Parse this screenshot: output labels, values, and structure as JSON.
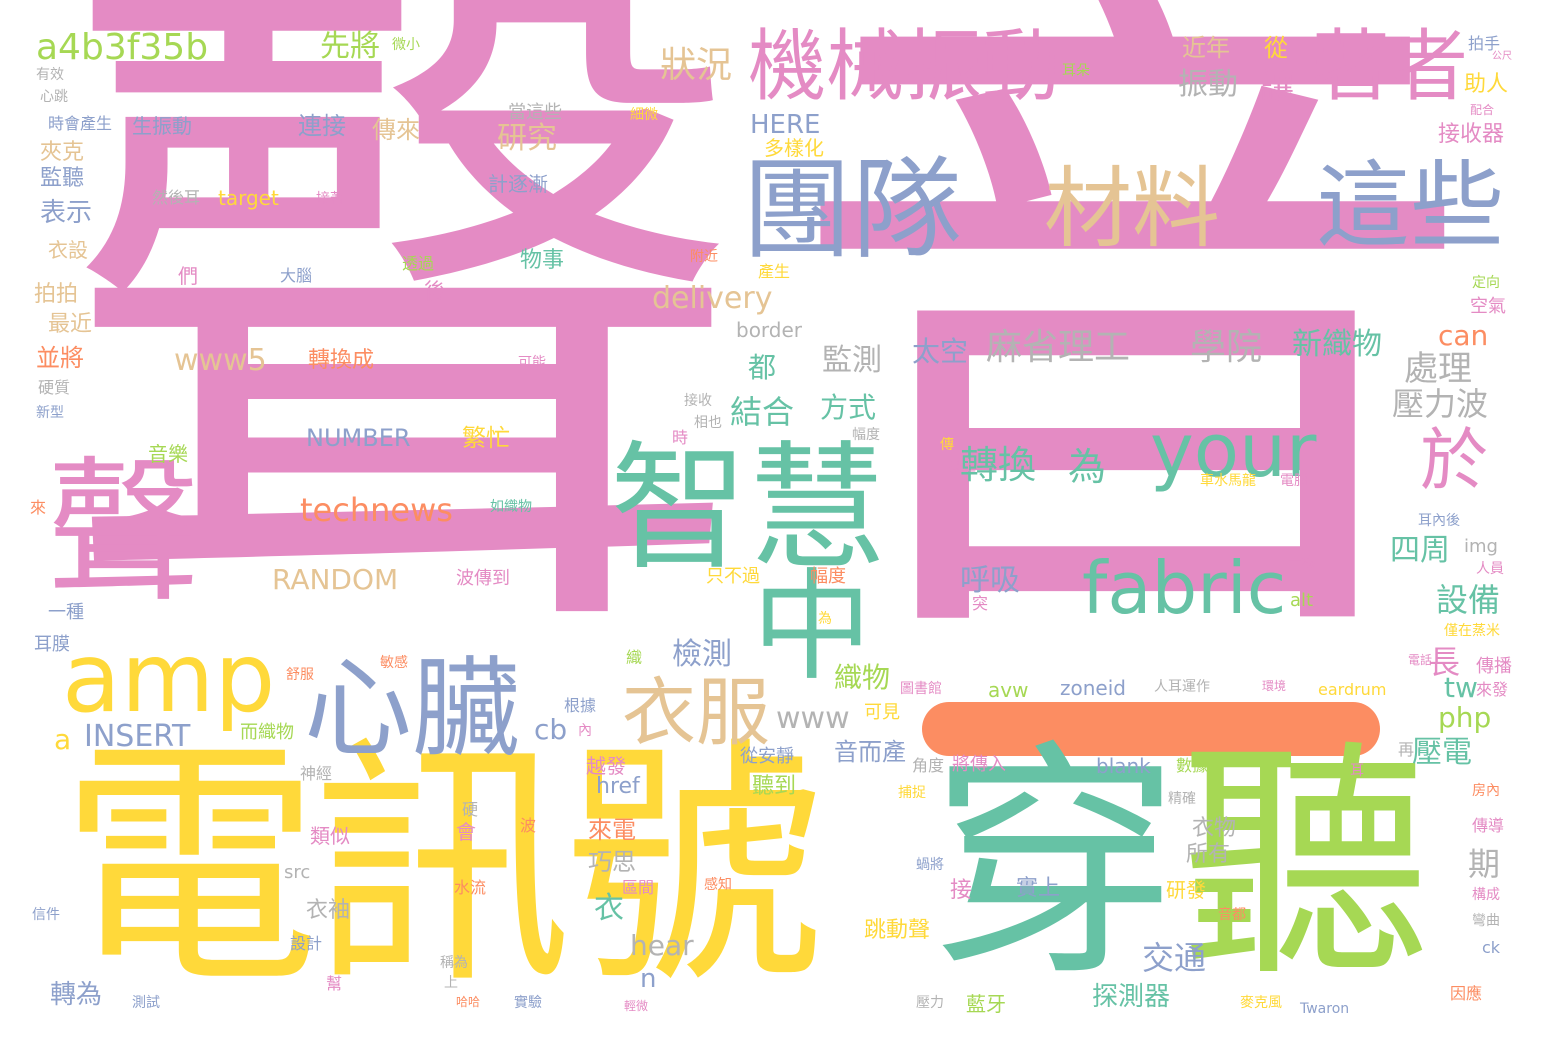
{
  "colors": {
    "pink": "#e48bc4",
    "yellow": "#ffd93a",
    "green": "#66c2a5",
    "lime": "#a6d854",
    "blue": "#8da0cb",
    "tan": "#e5c494",
    "orange": "#fc8d62",
    "gray": "#b3b3b3"
  },
  "words": [
    {
      "text": "聲",
      "color": "pink"
    },
    {
      "text": "音",
      "color": "pink"
    },
    {
      "text": "電訊號",
      "color": "yellow"
    },
    {
      "text": "穿",
      "color": "green"
    },
    {
      "text": "聽",
      "color": "lime"
    },
    {
      "text": "聲",
      "color": "pink"
    },
    {
      "text": "智慧",
      "color": "green"
    },
    {
      "text": "團隊",
      "color": "blue"
    },
    {
      "text": "機械振動",
      "color": "pink"
    },
    {
      "text": "著者",
      "color": "pink"
    },
    {
      "text": "材料",
      "color": "tan"
    },
    {
      "text": "這些",
      "color": "blue"
    },
    {
      "text": "中",
      "color": "green"
    },
    {
      "text": "amp",
      "color": "yellow"
    },
    {
      "text": "心臟",
      "color": "blue"
    },
    {
      "text": "衣服",
      "color": "tan"
    },
    {
      "text": "your",
      "color": "green"
    },
    {
      "text": "fabric",
      "color": "green"
    },
    {
      "text": "於",
      "color": "pink"
    },
    {
      "text": "a4b3f35b",
      "color": "lime"
    },
    {
      "text": "先將",
      "color": "lime"
    },
    {
      "text": "微小",
      "color": "lime"
    },
    {
      "text": "狀況",
      "color": "tan"
    },
    {
      "text": "研究",
      "color": "tan"
    },
    {
      "text": "計逐漸",
      "color": "blue"
    },
    {
      "text": "HERE",
      "color": "blue"
    },
    {
      "text": "多樣化",
      "color": "yellow"
    },
    {
      "text": "近年",
      "color": "tan"
    },
    {
      "text": "振動",
      "color": "gray"
    },
    {
      "text": "讓",
      "color": "pink"
    },
    {
      "text": "從",
      "color": "yellow"
    },
    {
      "text": "耳朵",
      "color": "lime"
    },
    {
      "text": "拍手",
      "color": "blue"
    },
    {
      "text": "公尺",
      "color": "pink"
    },
    {
      "text": "助人",
      "color": "yellow"
    },
    {
      "text": "配合",
      "color": "pink"
    },
    {
      "text": "接收器",
      "color": "pink"
    },
    {
      "text": "有效",
      "color": "gray"
    },
    {
      "text": "心跳",
      "color": "gray"
    },
    {
      "text": "時會產生",
      "color": "blue"
    },
    {
      "text": "生振動",
      "color": "blue"
    },
    {
      "text": "連接",
      "color": "blue"
    },
    {
      "text": "傳來",
      "color": "tan"
    },
    {
      "text": "當這些",
      "color": "gray"
    },
    {
      "text": "細微",
      "color": "yellow"
    },
    {
      "text": "夾克",
      "color": "tan"
    },
    {
      "text": "監聽",
      "color": "blue"
    },
    {
      "text": "表示",
      "color": "blue"
    },
    {
      "text": "然後耳",
      "color": "gray"
    },
    {
      "text": "target",
      "color": "yellow"
    },
    {
      "text": "接著",
      "color": "pink"
    },
    {
      "text": "衣設",
      "color": "tan"
    },
    {
      "text": "們",
      "color": "pink"
    },
    {
      "text": "大腦",
      "color": "blue"
    },
    {
      "text": "透過",
      "color": "lime"
    },
    {
      "text": "物事",
      "color": "green"
    },
    {
      "text": "附近",
      "color": "orange"
    },
    {
      "text": "產生",
      "color": "yellow"
    },
    {
      "text": "定向",
      "color": "lime"
    },
    {
      "text": "空氣",
      "color": "pink"
    },
    {
      "text": "拍拍",
      "color": "tan"
    },
    {
      "text": "最近",
      "color": "tan"
    },
    {
      "text": "並將",
      "color": "orange"
    },
    {
      "text": "後",
      "color": "pink"
    },
    {
      "text": "delivery",
      "color": "tan"
    },
    {
      "text": "border",
      "color": "gray"
    },
    {
      "text": "www5",
      "color": "tan"
    },
    {
      "text": "轉換成",
      "color": "orange"
    },
    {
      "text": "都",
      "color": "green"
    },
    {
      "text": "監測",
      "color": "gray"
    },
    {
      "text": "太空",
      "color": "blue"
    },
    {
      "text": "麻省理工",
      "color": "gray"
    },
    {
      "text": "學院",
      "color": "gray"
    },
    {
      "text": "新織物",
      "color": "green"
    },
    {
      "text": "can",
      "color": "orange"
    },
    {
      "text": "處理",
      "color": "gray"
    },
    {
      "text": "壓力波",
      "color": "gray"
    },
    {
      "text": "硬質",
      "color": "gray"
    },
    {
      "text": "新型",
      "color": "blue"
    },
    {
      "text": "可能",
      "color": "pink"
    },
    {
      "text": "結合",
      "color": "green"
    },
    {
      "text": "方式",
      "color": "green"
    },
    {
      "text": "轉換",
      "color": "green"
    },
    {
      "text": "為",
      "color": "green"
    },
    {
      "text": "接收",
      "color": "gray"
    },
    {
      "text": "相也",
      "color": "gray"
    },
    {
      "text": "幅度",
      "color": "gray"
    },
    {
      "text": "NUMBER",
      "color": "blue"
    },
    {
      "text": "繁忙",
      "color": "yellow"
    },
    {
      "text": "音樂",
      "color": "lime"
    },
    {
      "text": "時",
      "color": "pink"
    },
    {
      "text": "傳",
      "color": "yellow"
    },
    {
      "text": "身上",
      "color": "pink"
    },
    {
      "text": "車水馬龍",
      "color": "yellow"
    },
    {
      "text": "電腦",
      "color": "pink"
    },
    {
      "text": "technews",
      "color": "orange"
    },
    {
      "text": "如織物",
      "color": "green"
    },
    {
      "text": "呼吸",
      "color": "blue"
    },
    {
      "text": "四周",
      "color": "green"
    },
    {
      "text": "耳內後",
      "color": "blue"
    },
    {
      "text": "img",
      "color": "gray"
    },
    {
      "text": "人員",
      "color": "pink"
    },
    {
      "text": "來",
      "color": "orange"
    },
    {
      "text": "RANDOM",
      "color": "tan"
    },
    {
      "text": "波傳到",
      "color": "pink"
    },
    {
      "text": "只不過",
      "color": "yellow"
    },
    {
      "text": "幅度",
      "color": "orange"
    },
    {
      "text": "一樣",
      "color": "pink"
    },
    {
      "text": "設備",
      "color": "green"
    },
    {
      "text": "alt",
      "color": "lime"
    },
    {
      "text": "一種",
      "color": "blue"
    },
    {
      "text": "突",
      "color": "pink"
    },
    {
      "text": "為",
      "color": "yellow"
    },
    {
      "text": "僅在蒸米",
      "color": "yellow"
    },
    {
      "text": "耳膜",
      "color": "blue"
    },
    {
      "text": "舒服",
      "color": "orange"
    },
    {
      "text": "敏感",
      "color": "orange"
    },
    {
      "text": "織",
      "color": "lime"
    },
    {
      "text": "檢測",
      "color": "blue"
    },
    {
      "text": "長",
      "color": "pink"
    },
    {
      "text": "電話",
      "color": "pink"
    },
    {
      "text": "傳播",
      "color": "pink"
    },
    {
      "text": "tw",
      "color": "green"
    },
    {
      "text": "織物",
      "color": "lime"
    },
    {
      "text": "圖書館",
      "color": "pink"
    },
    {
      "text": "avw",
      "color": "lime"
    },
    {
      "text": "zoneid",
      "color": "blue"
    },
    {
      "text": "人耳運作",
      "color": "gray"
    },
    {
      "text": "環境",
      "color": "pink"
    },
    {
      "text": "eardrum",
      "color": "yellow"
    },
    {
      "text": "來發",
      "color": "pink"
    },
    {
      "text": "根據",
      "color": "blue"
    },
    {
      "text": "php",
      "color": "lime"
    },
    {
      "text": "a",
      "color": "yellow"
    },
    {
      "text": "INSERT",
      "color": "blue"
    },
    {
      "text": "而織物",
      "color": "lime"
    },
    {
      "text": "cb",
      "color": "blue"
    },
    {
      "text": "內",
      "color": "pink"
    },
    {
      "text": "www",
      "color": "gray"
    },
    {
      "text": "可見",
      "color": "yellow"
    },
    {
      "text": "再",
      "color": "gray"
    },
    {
      "text": "音而產",
      "color": "blue"
    },
    {
      "text": "壓電",
      "color": "green"
    },
    {
      "text": "從安靜",
      "color": "blue"
    },
    {
      "text": "角度",
      "color": "gray"
    },
    {
      "text": "將傳入",
      "color": "pink"
    },
    {
      "text": "blank",
      "color": "blue"
    },
    {
      "text": "數據",
      "color": "lime"
    },
    {
      "text": "耳",
      "color": "pink"
    },
    {
      "text": "神經",
      "color": "gray"
    },
    {
      "text": "越發",
      "color": "pink"
    },
    {
      "text": "聽到",
      "color": "lime"
    },
    {
      "text": "捕捉",
      "color": "yellow"
    },
    {
      "text": "href",
      "color": "blue"
    },
    {
      "text": "精確",
      "color": "gray"
    },
    {
      "text": "房內",
      "color": "orange"
    },
    {
      "text": "硬",
      "color": "gray"
    },
    {
      "text": "會",
      "color": "pink"
    },
    {
      "text": "波",
      "color": "orange"
    },
    {
      "text": "來電",
      "color": "orange"
    },
    {
      "text": "衣物",
      "color": "gray"
    },
    {
      "text": "傳導",
      "color": "pink"
    },
    {
      "text": "類似",
      "color": "pink"
    },
    {
      "text": "巧思",
      "color": "gray"
    },
    {
      "text": "所有",
      "color": "gray"
    },
    {
      "text": "期",
      "color": "gray"
    },
    {
      "text": "src",
      "color": "gray"
    },
    {
      "text": "蝸將",
      "color": "blue"
    },
    {
      "text": "感知",
      "color": "orange"
    },
    {
      "text": "實上",
      "color": "blue"
    },
    {
      "text": "研發",
      "color": "yellow"
    },
    {
      "text": "信件",
      "color": "blue"
    },
    {
      "text": "衣袖",
      "color": "gray"
    },
    {
      "text": "區間",
      "color": "pink"
    },
    {
      "text": "水流",
      "color": "orange"
    },
    {
      "text": "接",
      "color": "pink"
    },
    {
      "text": "衣",
      "color": "green"
    },
    {
      "text": "音都",
      "color": "orange"
    },
    {
      "text": "構成",
      "color": "pink"
    },
    {
      "text": "設計",
      "color": "blue"
    },
    {
      "text": "稱為",
      "color": "gray"
    },
    {
      "text": "跳動聲",
      "color": "yellow"
    },
    {
      "text": "hear",
      "color": "gray"
    },
    {
      "text": "交通",
      "color": "blue"
    },
    {
      "text": "彎曲",
      "color": "gray"
    },
    {
      "text": "上",
      "color": "gray"
    },
    {
      "text": "幫",
      "color": "pink"
    },
    {
      "text": "n",
      "color": "blue"
    },
    {
      "text": "ck",
      "color": "blue"
    },
    {
      "text": "轉為",
      "color": "blue"
    },
    {
      "text": "測試",
      "color": "blue"
    },
    {
      "text": "哈哈",
      "color": "orange"
    },
    {
      "text": "實驗",
      "color": "blue"
    },
    {
      "text": "壓力",
      "color": "gray"
    },
    {
      "text": "藍牙",
      "color": "lime"
    },
    {
      "text": "探測器",
      "color": "green"
    },
    {
      "text": "麥克風",
      "color": "yellow"
    },
    {
      "text": "Twaron",
      "color": "blue"
    },
    {
      "text": "因應",
      "color": "orange"
    },
    {
      "text": "輕微",
      "color": "pink"
    }
  ]
}
